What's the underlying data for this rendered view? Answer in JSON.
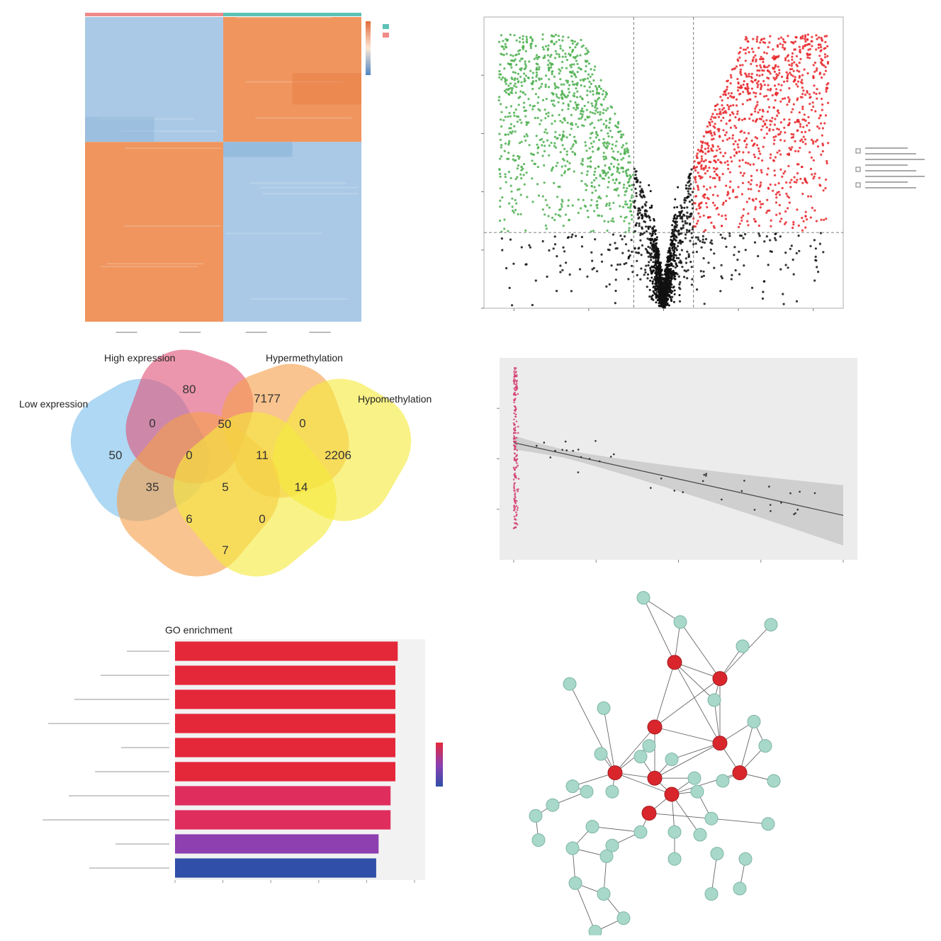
{
  "colors": {
    "heat_blue": "#a9c9e6",
    "heat_orange": "#f0955e",
    "heat_strip_red": "#f08a8a",
    "heat_strip_teal": "#5cc2b6",
    "volcano_green": "#4caf4f",
    "volcano_black": "#111111",
    "volcano_red": "#e8262a",
    "venn_blue": "#7cc0ec",
    "venn_pink": "#e0557a",
    "venn_orange": "#f5a04a",
    "venn_yellow": "#f6ea3d",
    "scatter_pink": "#d23a6e",
    "band_gray": "#c8c8c8",
    "node_red": "#d9262d",
    "node_teal": "#a7d8c9"
  },
  "chart_data": [
    {
      "type": "heatmap",
      "blocks": [
        {
          "row": 0,
          "col": 0,
          "value": "low"
        },
        {
          "row": 0,
          "col": 1,
          "value": "high"
        },
        {
          "row": 1,
          "col": 0,
          "value": "high"
        },
        {
          "row": 1,
          "col": 1,
          "value": "low"
        }
      ]
    },
    {
      "type": "scatter",
      "subtype": "volcano",
      "xlim": [
        -1.2,
        1.2
      ],
      "ylim": [
        0,
        5
      ],
      "thresholds": {
        "x": [
          -0.2,
          0.2
        ],
        "y": 1.3
      }
    },
    {
      "type": "venn",
      "sets": [
        {
          "label": "Low expression"
        },
        {
          "label": "High expression"
        },
        {
          "label": "Hypermethylation"
        },
        {
          "label": "Hypomethylation"
        }
      ],
      "counts": [
        {
          "value": "50"
        },
        {
          "value": "80"
        },
        {
          "value": "7177"
        },
        {
          "value": "2206"
        },
        {
          "value": "0"
        },
        {
          "value": "50"
        },
        {
          "value": "0"
        },
        {
          "value": "0"
        },
        {
          "value": "11"
        },
        {
          "value": "35"
        },
        {
          "value": "5"
        },
        {
          "value": "14"
        },
        {
          "value": "6"
        },
        {
          "value": "0"
        },
        {
          "value": "7"
        }
      ]
    },
    {
      "type": "scatter",
      "regression": true,
      "xlim": [
        0,
        1
      ],
      "ylim": [
        0,
        1
      ],
      "fit": {
        "x0": 0.0,
        "y0": 0.58,
        "x1": 1.0,
        "y1": 0.22
      }
    },
    {
      "type": "bar",
      "orientation": "horizontal",
      "title": "GO enrichment",
      "values": [
        9.3,
        9.2,
        9.2,
        9.2,
        9.2,
        9.2,
        9.0,
        9.0,
        8.5,
        8.4
      ],
      "xlim": [
        0,
        10
      ]
    },
    {
      "type": "network",
      "nodes": [
        {
          "id": 0,
          "x": 0.42,
          "y": 0.02,
          "hub": false
        },
        {
          "id": 1,
          "x": 0.55,
          "y": 0.11,
          "hub": false
        },
        {
          "id": 2,
          "x": 0.87,
          "y": 0.12,
          "hub": false
        },
        {
          "id": 3,
          "x": 0.77,
          "y": 0.2,
          "hub": false
        },
        {
          "id": 4,
          "x": 0.53,
          "y": 0.26,
          "hub": true
        },
        {
          "id": 5,
          "x": 0.69,
          "y": 0.32,
          "hub": true
        },
        {
          "id": 6,
          "x": 0.16,
          "y": 0.34,
          "hub": false
        },
        {
          "id": 7,
          "x": 0.67,
          "y": 0.4,
          "hub": false
        },
        {
          "id": 8,
          "x": 0.28,
          "y": 0.43,
          "hub": false
        },
        {
          "id": 9,
          "x": 0.81,
          "y": 0.48,
          "hub": false
        },
        {
          "id": 10,
          "x": 0.46,
          "y": 0.5,
          "hub": true
        },
        {
          "id": 11,
          "x": 0.69,
          "y": 0.56,
          "hub": true
        },
        {
          "id": 12,
          "x": 0.44,
          "y": 0.57,
          "hub": false
        },
        {
          "id": 13,
          "x": 0.85,
          "y": 0.57,
          "hub": false
        },
        {
          "id": 14,
          "x": 0.27,
          "y": 0.6,
          "hub": false
        },
        {
          "id": 15,
          "x": 0.41,
          "y": 0.61,
          "hub": false
        },
        {
          "id": 16,
          "x": 0.52,
          "y": 0.62,
          "hub": false
        },
        {
          "id": 17,
          "x": 0.32,
          "y": 0.67,
          "hub": true
        },
        {
          "id": 18,
          "x": 0.46,
          "y": 0.69,
          "hub": true
        },
        {
          "id": 19,
          "x": 0.6,
          "y": 0.69,
          "hub": false
        },
        {
          "id": 20,
          "x": 0.76,
          "y": 0.67,
          "hub": true
        },
        {
          "id": 21,
          "x": 0.17,
          "y": 0.72,
          "hub": false
        },
        {
          "id": 22,
          "x": 0.22,
          "y": 0.74,
          "hub": false
        },
        {
          "id": 23,
          "x": 0.52,
          "y": 0.75,
          "hub": true
        },
        {
          "id": 24,
          "x": 0.31,
          "y": 0.74,
          "hub": false
        },
        {
          "id": 25,
          "x": 0.61,
          "y": 0.74,
          "hub": false
        },
        {
          "id": 26,
          "x": 0.7,
          "y": 0.7,
          "hub": false
        },
        {
          "id": 27,
          "x": 0.88,
          "y": 0.7,
          "hub": false
        },
        {
          "id": 28,
          "x": 0.1,
          "y": 0.79,
          "hub": false
        },
        {
          "id": 29,
          "x": 0.44,
          "y": 0.82,
          "hub": true
        },
        {
          "id": 30,
          "x": 0.66,
          "y": 0.84,
          "hub": false
        },
        {
          "id": 31,
          "x": 0.86,
          "y": 0.86,
          "hub": false
        },
        {
          "id": 32,
          "x": 0.04,
          "y": 0.83,
          "hub": false
        },
        {
          "id": 33,
          "x": 0.24,
          "y": 0.87,
          "hub": false
        },
        {
          "id": 34,
          "x": 0.41,
          "y": 0.89,
          "hub": false
        },
        {
          "id": 35,
          "x": 0.53,
          "y": 0.89,
          "hub": false
        },
        {
          "id": 36,
          "x": 0.62,
          "y": 0.9,
          "hub": false
        },
        {
          "id": 37,
          "x": 0.05,
          "y": 0.92,
          "hub": false
        },
        {
          "id": 38,
          "x": 0.31,
          "y": 0.94,
          "hub": false
        },
        {
          "id": 39,
          "x": 0.17,
          "y": 0.95,
          "hub": false
        },
        {
          "id": 40,
          "x": 0.29,
          "y": 0.98,
          "hub": false
        },
        {
          "id": 41,
          "x": 0.53,
          "y": 0.99,
          "hub": false
        },
        {
          "id": 42,
          "x": 0.68,
          "y": 0.97,
          "hub": false
        },
        {
          "id": 43,
          "x": 0.78,
          "y": 0.99,
          "hub": false
        },
        {
          "id": 44,
          "x": 0.18,
          "y": 1.08,
          "hub": false
        },
        {
          "id": 45,
          "x": 0.28,
          "y": 1.12,
          "hub": false
        },
        {
          "id": 46,
          "x": 0.66,
          "y": 1.12,
          "hub": false
        },
        {
          "id": 47,
          "x": 0.76,
          "y": 1.1,
          "hub": false
        },
        {
          "id": 48,
          "x": 0.35,
          "y": 1.21,
          "hub": false
        },
        {
          "id": 49,
          "x": 0.25,
          "y": 1.26,
          "hub": false
        }
      ],
      "edges": [
        [
          0,
          4
        ],
        [
          0,
          1
        ],
        [
          1,
          4
        ],
        [
          1,
          5
        ],
        [
          2,
          5
        ],
        [
          3,
          5
        ],
        [
          4,
          5
        ],
        [
          4,
          7
        ],
        [
          4,
          10
        ],
        [
          4,
          11
        ],
        [
          5,
          7
        ],
        [
          5,
          11
        ],
        [
          5,
          10
        ],
        [
          6,
          17
        ],
        [
          7,
          11
        ],
        [
          8,
          17
        ],
        [
          9,
          11
        ],
        [
          9,
          20
        ],
        [
          9,
          13
        ],
        [
          10,
          11
        ],
        [
          10,
          17
        ],
        [
          10,
          18
        ],
        [
          11,
          18
        ],
        [
          11,
          20
        ],
        [
          11,
          16
        ],
        [
          12,
          17
        ],
        [
          13,
          20
        ],
        [
          14,
          17
        ],
        [
          15,
          18
        ],
        [
          16,
          18
        ],
        [
          17,
          18
        ],
        [
          17,
          21
        ],
        [
          17,
          23
        ],
        [
          18,
          23
        ],
        [
          18,
          19
        ],
        [
          19,
          23
        ],
        [
          20,
          23
        ],
        [
          20,
          27
        ],
        [
          21,
          22
        ],
        [
          22,
          28
        ],
        [
          23,
          25
        ],
        [
          23,
          29
        ],
        [
          24,
          17
        ],
        [
          25,
          30
        ],
        [
          26,
          20
        ],
        [
          28,
          32
        ],
        [
          29,
          30
        ],
        [
          29,
          34
        ],
        [
          30,
          31
        ],
        [
          32,
          37
        ],
        [
          33,
          34
        ],
        [
          33,
          39
        ],
        [
          34,
          38
        ],
        [
          35,
          23
        ],
        [
          36,
          23
        ],
        [
          38,
          40
        ],
        [
          39,
          40
        ],
        [
          39,
          44
        ],
        [
          40,
          45
        ],
        [
          44,
          45
        ],
        [
          44,
          49
        ],
        [
          45,
          48
        ],
        [
          46,
          46
        ],
        [
          47,
          43
        ],
        [
          42,
          46
        ],
        [
          41,
          35
        ],
        [
          48,
          49
        ]
      ]
    }
  ],
  "venn_labels": {
    "low": "Low expression",
    "high": "High expression",
    "hyper": "Hypermethylation",
    "hypo": "Hypomethylation"
  },
  "bar_title": "GO enrichment"
}
